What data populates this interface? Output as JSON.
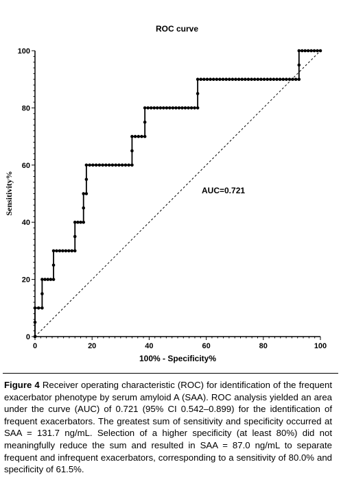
{
  "chart_data": {
    "type": "line",
    "title": "ROC curve",
    "xlabel": "100% - Specificity%",
    "ylabel": "Sensitivity%",
    "xlim": [
      0,
      100
    ],
    "ylim": [
      0,
      100
    ],
    "xticks": [
      0,
      20,
      40,
      60,
      80,
      100
    ],
    "yticks": [
      0,
      20,
      40,
      60,
      80,
      100
    ],
    "annotation": "AUC=0.721",
    "grid": false,
    "reference_line": "diagonal dashed",
    "series": [
      {
        "style": "step line with markers",
        "points": [
          [
            0,
            0
          ],
          [
            0,
            10
          ],
          [
            2.5,
            10
          ],
          [
            2.5,
            20
          ],
          [
            6.5,
            20
          ],
          [
            6.5,
            30
          ],
          [
            14,
            30
          ],
          [
            14,
            40
          ],
          [
            17,
            40
          ],
          [
            17,
            50
          ],
          [
            18,
            50
          ],
          [
            18,
            60
          ],
          [
            34,
            60
          ],
          [
            34,
            70
          ],
          [
            38.5,
            70
          ],
          [
            38.5,
            80
          ],
          [
            57,
            80
          ],
          [
            57,
            90
          ],
          [
            92.5,
            90
          ],
          [
            92.5,
            100
          ],
          [
            100,
            100
          ]
        ]
      }
    ]
  },
  "caption": {
    "label": "Figure 4",
    "text": " Receiver operating characteristic (ROC) for identification of the frequent exacerbator phenotype by serum amyloid A (SAA). ROC analysis yielded an area under the curve (AUC) of 0.721 (95% CI 0.542–0.899) for the identification of frequent exacerbators. The greatest sum of sensitivity and specificity occurred at SAA = 131.7 ng/mL. Selection of a higher specificity (at least 80%) did not meaningfully reduce the sum and resulted in SAA = 87.0 ng/mL to separate frequent and infrequent exacerbators, corresponding to a sensitivity of 80.0% and specificity of 61.5%."
  }
}
